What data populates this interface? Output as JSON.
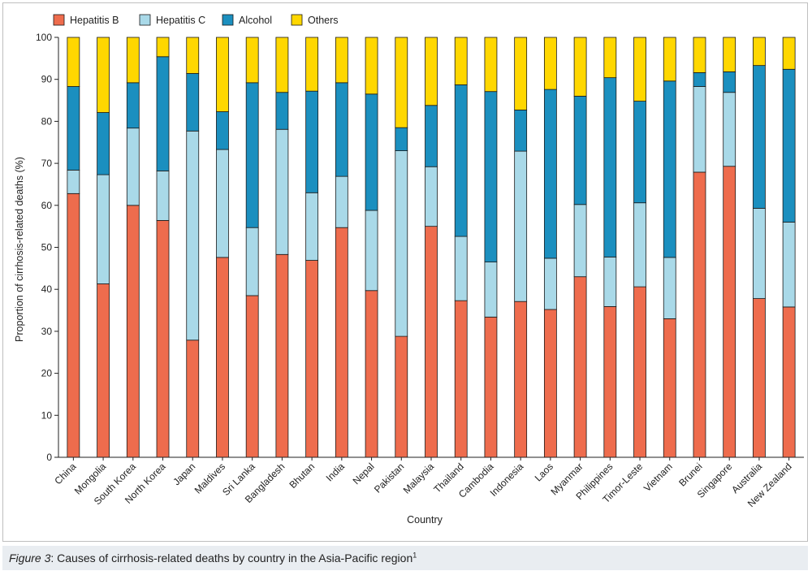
{
  "caption": {
    "label": "Figure 3",
    "separator": ":",
    "text": " Causes of cirrhosis-related deaths by country in the Asia-Pacific region",
    "superscript": "1"
  },
  "chart_data": {
    "type": "bar",
    "stacked": true,
    "title": "",
    "xlabel": "Country",
    "ylabel": "Proportion of cirrhosis-related deaths (%)",
    "ylim": [
      0,
      100
    ],
    "yticks": [
      0,
      10,
      20,
      30,
      40,
      50,
      60,
      70,
      80,
      90,
      100
    ],
    "legend_position": "top-left",
    "categories": [
      "China",
      "Mongolia",
      "South Korea",
      "North Korea",
      "Japan",
      "Maldives",
      "Sri Lanka",
      "Bangladesh",
      "Bhutan",
      "India",
      "Nepal",
      "Pakistan",
      "Malaysia",
      "Thailand",
      "Cambodia",
      "Indonesia",
      "Laos",
      "Myanmar",
      "Philippines",
      "Timor-Leste",
      "Vietnam",
      "Brunei",
      "Singapore",
      "Australia",
      "New Zealand"
    ],
    "series": [
      {
        "name": "Hepatitis B",
        "color": "#ee6c4d",
        "values": [
          62.8,
          41.3,
          60.0,
          56.4,
          27.9,
          47.6,
          38.5,
          48.3,
          46.9,
          54.7,
          39.7,
          28.8,
          55.0,
          37.3,
          33.4,
          37.1,
          35.2,
          43.0,
          35.9,
          40.6,
          33.0,
          67.9,
          69.3,
          37.8,
          35.8
        ]
      },
      {
        "name": "Hepatitis C",
        "color": "#a9d9e8",
        "values": [
          5.6,
          26.0,
          18.4,
          11.8,
          49.8,
          25.7,
          16.2,
          29.8,
          16.1,
          12.2,
          19.1,
          44.2,
          14.2,
          15.3,
          13.1,
          35.8,
          12.2,
          17.2,
          11.8,
          20.0,
          14.6,
          20.4,
          17.6,
          21.5,
          20.2
        ]
      },
      {
        "name": "Alcohol",
        "color": "#1b8fbf",
        "values": [
          19.9,
          14.8,
          10.8,
          27.2,
          13.7,
          9.0,
          34.5,
          8.8,
          24.2,
          22.3,
          27.7,
          5.5,
          14.6,
          36.1,
          40.6,
          9.8,
          40.2,
          25.8,
          42.7,
          24.2,
          42.0,
          3.3,
          4.9,
          34.0,
          36.4
        ]
      },
      {
        "name": "Others",
        "color": "#ffd700",
        "values": [
          11.7,
          17.9,
          10.8,
          4.6,
          8.6,
          17.7,
          10.8,
          13.1,
          12.8,
          10.8,
          13.5,
          21.5,
          16.2,
          11.3,
          12.9,
          17.3,
          12.4,
          14.0,
          9.6,
          15.2,
          10.4,
          8.4,
          8.2,
          6.7,
          7.6
        ]
      }
    ]
  }
}
